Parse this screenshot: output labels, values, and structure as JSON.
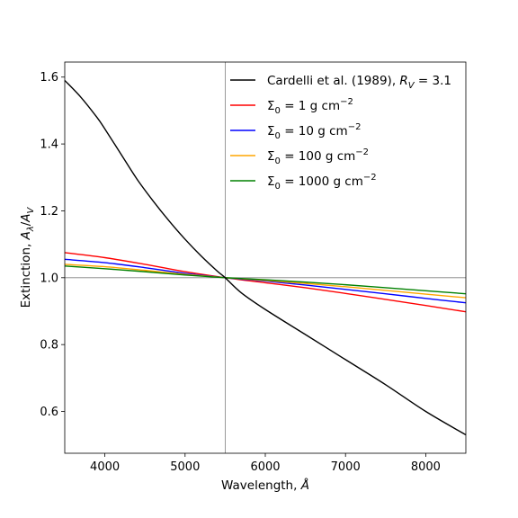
{
  "chart_data": {
    "type": "line",
    "xlabel": "Wavelength, Å",
    "ylabel": "Extinction, Aλ/AV",
    "xlim": [
      3500,
      8500
    ],
    "ylim": [
      0.475,
      1.645
    ],
    "x_ticks": [
      4000,
      5000,
      6000,
      7000,
      8000
    ],
    "x_tick_labels": [
      "4000",
      "5000",
      "6000",
      "7000",
      "8000"
    ],
    "y_ticks": [
      0.6,
      0.8,
      1.0,
      1.2,
      1.4,
      1.6
    ],
    "y_tick_labels": [
      "0.6",
      "0.8",
      "1.0",
      "1.2",
      "1.4",
      "1.6"
    ],
    "grid": false,
    "legend_position": "top-right",
    "reference_lines": {
      "vertical_x": 5500,
      "horizontal_y": 1.0
    },
    "series": [
      {
        "name": "Cardelli et al. (1989), R_V = 3.1",
        "color": "#000000",
        "x": [
          3500,
          3700,
          3900,
          4000,
          4200,
          4400,
          4600,
          4800,
          5000,
          5200,
          5400,
          5500,
          5700,
          6000,
          6500,
          7000,
          7500,
          8000,
          8500
        ],
        "y": [
          1.59,
          1.54,
          1.48,
          1.445,
          1.37,
          1.295,
          1.23,
          1.17,
          1.115,
          1.065,
          1.02,
          1.0,
          0.955,
          0.905,
          0.83,
          0.755,
          0.68,
          0.6,
          0.53
        ]
      },
      {
        "name": "Σ0 = 1 g cm^-2",
        "color": "#ff0000",
        "x": [
          3500,
          4000,
          4500,
          5000,
          5500,
          6000,
          6500,
          7000,
          7500,
          8000,
          8500
        ],
        "y": [
          1.075,
          1.06,
          1.04,
          1.018,
          1.0,
          0.985,
          0.97,
          0.953,
          0.935,
          0.917,
          0.898
        ]
      },
      {
        "name": "Σ0 = 10 g cm^-2",
        "color": "#0000ff",
        "x": [
          3500,
          4000,
          4500,
          5000,
          5500,
          6000,
          6500,
          7000,
          7500,
          8000,
          8500
        ],
        "y": [
          1.055,
          1.045,
          1.03,
          1.013,
          1.0,
          0.99,
          0.978,
          0.965,
          0.952,
          0.938,
          0.925
        ]
      },
      {
        "name": "Σ0 = 100 g cm^-2",
        "color": "#ffa500",
        "x": [
          3500,
          4000,
          4500,
          5000,
          5500,
          6000,
          6500,
          7000,
          7500,
          8000,
          8500
        ],
        "y": [
          1.04,
          1.033,
          1.022,
          1.01,
          1.0,
          0.992,
          0.983,
          0.973,
          0.962,
          0.951,
          0.94
        ]
      },
      {
        "name": "Σ0 = 1000 g cm^-2",
        "color": "#008000",
        "x": [
          3500,
          4000,
          4500,
          5000,
          5500,
          6000,
          6500,
          7000,
          7500,
          8000,
          8500
        ],
        "y": [
          1.035,
          1.027,
          1.018,
          1.008,
          1.0,
          0.994,
          0.987,
          0.979,
          0.97,
          0.961,
          0.952
        ]
      }
    ]
  },
  "legend": {
    "entries": [
      {
        "lead": "Cardelli et al. (1989), ",
        "sym": "R",
        "sub": "V",
        "tail": " = 3.1",
        "color": "#000000"
      },
      {
        "lead": "",
        "sym": "Σ",
        "sub": "0",
        "tail": " = 1 g cm",
        "sup": "−2",
        "color": "#ff0000"
      },
      {
        "lead": "",
        "sym": "Σ",
        "sub": "0",
        "tail": " = 10 g cm",
        "sup": "−2",
        "color": "#0000ff"
      },
      {
        "lead": "",
        "sym": "Σ",
        "sub": "0",
        "tail": " = 100 g cm",
        "sup": "−2",
        "color": "#ffa500"
      },
      {
        "lead": "",
        "sym": "Σ",
        "sub": "0",
        "tail": " = 1000 g cm",
        "sup": "−2",
        "color": "#008000"
      }
    ]
  }
}
